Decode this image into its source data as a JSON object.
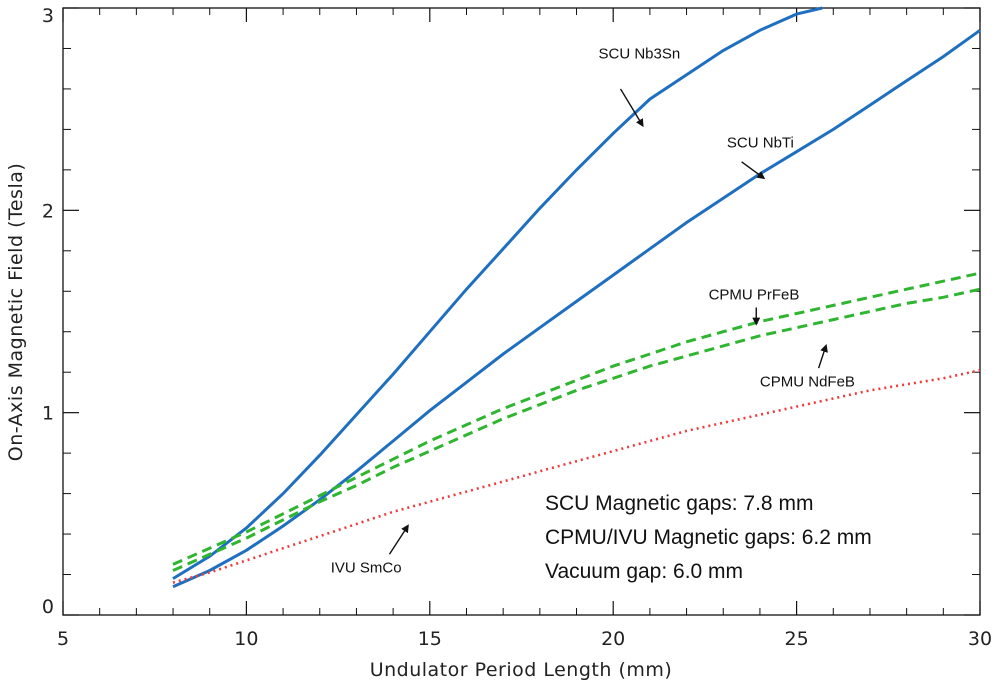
{
  "chart_data": {
    "type": "line",
    "xlabel": "Undulator Period Length (mm)",
    "ylabel": "On-Axis Magnetic Field (Tesla)",
    "xlim": [
      5,
      30
    ],
    "ylim": [
      0,
      3
    ],
    "x_ticks": [
      5,
      10,
      15,
      20,
      25,
      30
    ],
    "y_ticks": [
      0,
      1,
      2,
      3
    ],
    "grid": false,
    "series": [
      {
        "name": "SCU Nb3Sn",
        "color": "#1f6fc1",
        "style": "solid",
        "x": [
          8,
          9,
          10,
          11,
          12,
          13,
          14,
          15,
          16,
          17,
          18,
          19,
          20,
          21,
          22,
          23,
          24,
          25,
          25.7
        ],
        "y": [
          0.18,
          0.29,
          0.43,
          0.6,
          0.79,
          0.99,
          1.19,
          1.4,
          1.61,
          1.81,
          2.01,
          2.2,
          2.38,
          2.55,
          2.67,
          2.79,
          2.89,
          2.97,
          3.0
        ]
      },
      {
        "name": "SCU NbTi",
        "color": "#1f6fc1",
        "style": "solid",
        "x": [
          8,
          9,
          10,
          11,
          12,
          13,
          14,
          15,
          16,
          17,
          18,
          19,
          20,
          21,
          22,
          23,
          24,
          25,
          26,
          27,
          28,
          29,
          30
        ],
        "y": [
          0.14,
          0.22,
          0.32,
          0.44,
          0.57,
          0.71,
          0.86,
          1.01,
          1.15,
          1.29,
          1.42,
          1.55,
          1.68,
          1.81,
          1.94,
          2.06,
          2.18,
          2.29,
          2.4,
          2.52,
          2.64,
          2.76,
          2.89
        ]
      },
      {
        "name": "CPMU PrFeB",
        "color": "#2fb52f",
        "style": "dashed",
        "x": [
          8,
          9,
          10,
          11,
          12,
          13,
          14,
          15,
          16,
          17,
          18,
          19,
          20,
          21,
          22,
          23,
          24,
          25,
          26,
          27,
          28,
          29,
          30
        ],
        "y": [
          0.25,
          0.33,
          0.41,
          0.5,
          0.59,
          0.68,
          0.77,
          0.86,
          0.94,
          1.02,
          1.09,
          1.16,
          1.23,
          1.29,
          1.35,
          1.4,
          1.45,
          1.49,
          1.53,
          1.57,
          1.61,
          1.65,
          1.69
        ]
      },
      {
        "name": "CPMU NdFeB",
        "color": "#2fb52f",
        "style": "dashed",
        "x": [
          8,
          9,
          10,
          11,
          12,
          13,
          14,
          15,
          16,
          17,
          18,
          19,
          20,
          21,
          22,
          23,
          24,
          25,
          26,
          27,
          28,
          29,
          30
        ],
        "y": [
          0.22,
          0.3,
          0.38,
          0.47,
          0.56,
          0.64,
          0.73,
          0.81,
          0.89,
          0.97,
          1.04,
          1.11,
          1.17,
          1.23,
          1.28,
          1.33,
          1.38,
          1.42,
          1.46,
          1.5,
          1.54,
          1.57,
          1.61
        ]
      },
      {
        "name": "IVU SmCo",
        "color": "#ee3b3b",
        "style": "dotted",
        "x": [
          8,
          9,
          10,
          11,
          12,
          13,
          14,
          15,
          16,
          17,
          18,
          19,
          20,
          21,
          22,
          23,
          24,
          25,
          26,
          27,
          28,
          29,
          30
        ],
        "y": [
          0.16,
          0.21,
          0.27,
          0.33,
          0.39,
          0.45,
          0.51,
          0.56,
          0.61,
          0.66,
          0.71,
          0.76,
          0.81,
          0.86,
          0.91,
          0.95,
          0.99,
          1.03,
          1.07,
          1.11,
          1.14,
          1.17,
          1.21
        ]
      }
    ],
    "annotations": [
      {
        "text": "SCU Nb3Sn",
        "label_x": 19.6,
        "label_y": 2.75,
        "arrow_to_x": 20.8,
        "arrow_to_y": 2.42,
        "arrow_from_x": 20.2,
        "arrow_from_y": 2.6
      },
      {
        "text": "SCU NbTi",
        "label_x": 23.1,
        "label_y": 2.31,
        "arrow_to_x": 24.1,
        "arrow_to_y": 2.16,
        "arrow_from_x": 23.5,
        "arrow_from_y": 2.24
      },
      {
        "text": "CPMU PrFeB",
        "label_x": 22.6,
        "label_y": 1.56,
        "arrow_to_x": 23.9,
        "arrow_to_y": 1.44,
        "arrow_from_x": 23.9,
        "arrow_from_y": 1.52
      },
      {
        "text": "CPMU NdFeB",
        "label_x": 24.0,
        "label_y": 1.13,
        "arrow_to_x": 25.8,
        "arrow_to_y": 1.33,
        "arrow_from_x": 25.6,
        "arrow_from_y": 1.22
      },
      {
        "text": "IVU SmCo",
        "label_x": 12.3,
        "label_y": 0.21,
        "arrow_to_x": 14.4,
        "arrow_to_y": 0.44,
        "arrow_from_x": 13.9,
        "arrow_from_y": 0.3
      }
    ],
    "notes": [
      "SCU Magnetic gaps: 7.8 mm",
      "CPMU/IVU Magnetic gaps: 6.2 mm",
      "Vacuum gap: 6.0 mm"
    ]
  }
}
